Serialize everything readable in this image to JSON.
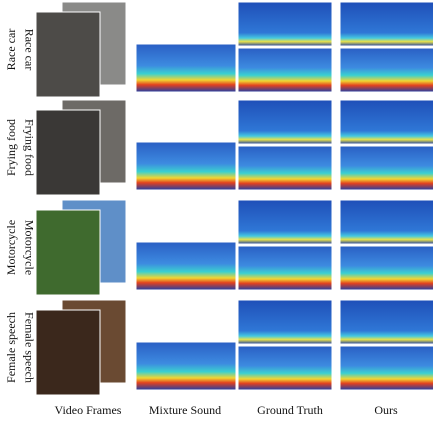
{
  "rows": [
    {
      "label": "Race car"
    },
    {
      "label": "Frying food"
    },
    {
      "label": "Motorcycle"
    },
    {
      "label": "Female speech"
    }
  ],
  "columns": [
    "Video Frames",
    "Mixture Sound",
    "Ground Truth",
    "Ours"
  ]
}
